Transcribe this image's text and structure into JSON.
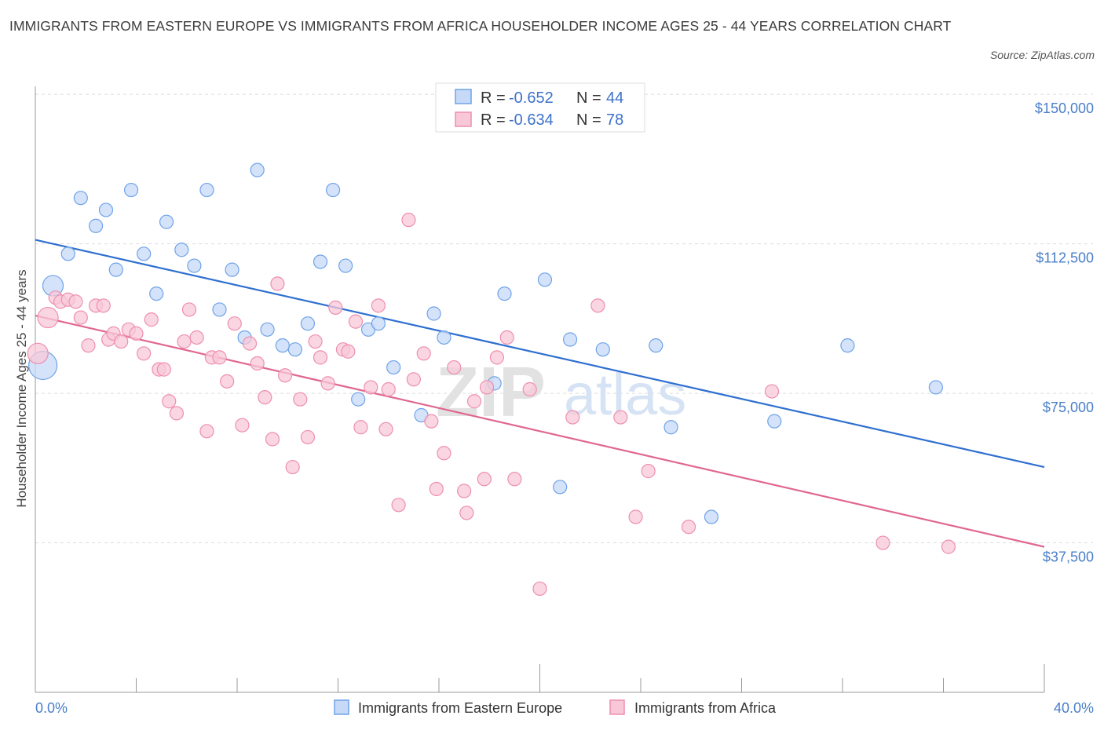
{
  "title": "IMMIGRANTS FROM EASTERN EUROPE VS IMMIGRANTS FROM AFRICA HOUSEHOLDER INCOME AGES 25 - 44 YEARS CORRELATION CHART",
  "source": "Source: ZipAtlas.com",
  "watermark": {
    "zip": "ZIP",
    "atlas": "atlas"
  },
  "colors": {
    "blue": "#6fa3e8",
    "blue_fill": "#c6daf7",
    "blue_line": "#2f6fd0",
    "pink": "#ee8fae",
    "pink_fill": "#f8c8d8",
    "pink_line": "#e0678f",
    "tick_text": "#4a7fc9"
  },
  "legend_stats": [
    {
      "r_label": "R =",
      "r_value": "-0.652",
      "n_label": "N =",
      "n_value": "44"
    },
    {
      "r_label": "R =",
      "r_value": "-0.634",
      "n_label": "N =",
      "n_value": "78"
    }
  ],
  "chart_data": {
    "type": "scatter",
    "ylabel": "Householder Income Ages 25 - 44 years",
    "xlabel": "",
    "xlim": [
      0,
      40
    ],
    "ylim": [
      0,
      152000
    ],
    "x_tick_labels": {
      "left": "0.0%",
      "right": "40.0%"
    },
    "y_ticks": [
      {
        "value": 37500,
        "label": "$37,500"
      },
      {
        "value": 75000,
        "label": "$75,000"
      },
      {
        "value": 112500,
        "label": "$112,500"
      },
      {
        "value": 150000,
        "label": "$150,000"
      }
    ],
    "series": [
      {
        "name": "Immigrants from Eastern Europe",
        "trend": {
          "x": [
            0,
            40
          ],
          "y": [
            113500,
            56500
          ]
        },
        "points": [
          {
            "x": 0.3,
            "y": 82000,
            "big": 2
          },
          {
            "x": 0.7,
            "y": 102000,
            "big": 1
          },
          {
            "x": 1.3,
            "y": 110000
          },
          {
            "x": 1.8,
            "y": 124000
          },
          {
            "x": 2.4,
            "y": 117000
          },
          {
            "x": 2.8,
            "y": 121000
          },
          {
            "x": 3.2,
            "y": 106000
          },
          {
            "x": 3.8,
            "y": 126000
          },
          {
            "x": 4.3,
            "y": 110000
          },
          {
            "x": 4.8,
            "y": 100000
          },
          {
            "x": 5.2,
            "y": 118000
          },
          {
            "x": 5.8,
            "y": 111000
          },
          {
            "x": 6.3,
            "y": 107000
          },
          {
            "x": 6.8,
            "y": 126000
          },
          {
            "x": 7.3,
            "y": 96000
          },
          {
            "x": 7.8,
            "y": 106000
          },
          {
            "x": 8.3,
            "y": 89000
          },
          {
            "x": 8.8,
            "y": 131000
          },
          {
            "x": 9.2,
            "y": 91000
          },
          {
            "x": 9.8,
            "y": 87000
          },
          {
            "x": 10.3,
            "y": 86000
          },
          {
            "x": 10.8,
            "y": 92500
          },
          {
            "x": 11.3,
            "y": 108000
          },
          {
            "x": 11.8,
            "y": 126000
          },
          {
            "x": 12.3,
            "y": 107000
          },
          {
            "x": 12.8,
            "y": 73500
          },
          {
            "x": 13.2,
            "y": 91000
          },
          {
            "x": 13.6,
            "y": 92500
          },
          {
            "x": 14.2,
            "y": 81500
          },
          {
            "x": 15.3,
            "y": 69500
          },
          {
            "x": 15.8,
            "y": 95000
          },
          {
            "x": 16.2,
            "y": 89000
          },
          {
            "x": 18.2,
            "y": 77500
          },
          {
            "x": 18.6,
            "y": 100000
          },
          {
            "x": 20.2,
            "y": 103500
          },
          {
            "x": 20.8,
            "y": 51500
          },
          {
            "x": 21.2,
            "y": 88500
          },
          {
            "x": 22.5,
            "y": 86000
          },
          {
            "x": 24.6,
            "y": 87000
          },
          {
            "x": 25.2,
            "y": 66500
          },
          {
            "x": 26.8,
            "y": 44000
          },
          {
            "x": 29.3,
            "y": 68000
          },
          {
            "x": 32.2,
            "y": 87000
          },
          {
            "x": 35.7,
            "y": 76500
          }
        ]
      },
      {
        "name": "Immigrants from Africa",
        "trend": {
          "x": [
            0,
            40
          ],
          "y": [
            94500,
            36500
          ]
        },
        "points": [
          {
            "x": 0.1,
            "y": 85000,
            "big": 1
          },
          {
            "x": 0.5,
            "y": 94000,
            "big": 1
          },
          {
            "x": 0.8,
            "y": 99000
          },
          {
            "x": 1.0,
            "y": 98000
          },
          {
            "x": 1.3,
            "y": 98500
          },
          {
            "x": 1.6,
            "y": 98000
          },
          {
            "x": 1.8,
            "y": 94000
          },
          {
            "x": 2.1,
            "y": 87000
          },
          {
            "x": 2.4,
            "y": 97000
          },
          {
            "x": 2.7,
            "y": 97000
          },
          {
            "x": 2.9,
            "y": 88500
          },
          {
            "x": 3.1,
            "y": 90000
          },
          {
            "x": 3.4,
            "y": 88000
          },
          {
            "x": 3.7,
            "y": 91000
          },
          {
            "x": 4.0,
            "y": 90000
          },
          {
            "x": 4.3,
            "y": 85000
          },
          {
            "x": 4.6,
            "y": 93500
          },
          {
            "x": 4.9,
            "y": 81000
          },
          {
            "x": 5.1,
            "y": 81000
          },
          {
            "x": 5.3,
            "y": 73000
          },
          {
            "x": 5.6,
            "y": 70000
          },
          {
            "x": 5.9,
            "y": 88000
          },
          {
            "x": 6.1,
            "y": 96000
          },
          {
            "x": 6.4,
            "y": 89000
          },
          {
            "x": 6.8,
            "y": 65500
          },
          {
            "x": 7.0,
            "y": 84000
          },
          {
            "x": 7.3,
            "y": 84000
          },
          {
            "x": 7.6,
            "y": 78000
          },
          {
            "x": 7.9,
            "y": 92500
          },
          {
            "x": 8.2,
            "y": 67000
          },
          {
            "x": 8.5,
            "y": 87500
          },
          {
            "x": 8.8,
            "y": 82500
          },
          {
            "x": 9.1,
            "y": 74000
          },
          {
            "x": 9.4,
            "y": 63500
          },
          {
            "x": 9.6,
            "y": 102500
          },
          {
            "x": 9.9,
            "y": 79500
          },
          {
            "x": 10.2,
            "y": 56500
          },
          {
            "x": 10.5,
            "y": 73500
          },
          {
            "x": 10.8,
            "y": 64000
          },
          {
            "x": 11.1,
            "y": 88000
          },
          {
            "x": 11.3,
            "y": 84000
          },
          {
            "x": 11.6,
            "y": 77500
          },
          {
            "x": 11.9,
            "y": 96500
          },
          {
            "x": 12.2,
            "y": 86000
          },
          {
            "x": 12.4,
            "y": 85500
          },
          {
            "x": 12.7,
            "y": 93000
          },
          {
            "x": 12.9,
            "y": 66500
          },
          {
            "x": 13.3,
            "y": 76500
          },
          {
            "x": 13.6,
            "y": 97000
          },
          {
            "x": 13.9,
            "y": 66000
          },
          {
            "x": 14.0,
            "y": 76000
          },
          {
            "x": 14.4,
            "y": 47000
          },
          {
            "x": 14.8,
            "y": 118500
          },
          {
            "x": 15.0,
            "y": 78500
          },
          {
            "x": 15.4,
            "y": 85000
          },
          {
            "x": 15.7,
            "y": 68000
          },
          {
            "x": 15.9,
            "y": 51000
          },
          {
            "x": 16.2,
            "y": 60000
          },
          {
            "x": 16.6,
            "y": 81500
          },
          {
            "x": 17.0,
            "y": 50500
          },
          {
            "x": 17.1,
            "y": 45000
          },
          {
            "x": 17.4,
            "y": 73000
          },
          {
            "x": 17.8,
            "y": 53500
          },
          {
            "x": 17.9,
            "y": 76500
          },
          {
            "x": 18.3,
            "y": 84000
          },
          {
            "x": 18.7,
            "y": 89000
          },
          {
            "x": 19.0,
            "y": 53500
          },
          {
            "x": 19.6,
            "y": 76000
          },
          {
            "x": 20.0,
            "y": 26000
          },
          {
            "x": 21.3,
            "y": 69000
          },
          {
            "x": 22.3,
            "y": 97000
          },
          {
            "x": 23.2,
            "y": 69000
          },
          {
            "x": 23.8,
            "y": 44000
          },
          {
            "x": 24.3,
            "y": 55500
          },
          {
            "x": 25.9,
            "y": 41500
          },
          {
            "x": 29.2,
            "y": 75500
          },
          {
            "x": 33.6,
            "y": 37500
          },
          {
            "x": 36.2,
            "y": 36500
          }
        ]
      }
    ]
  }
}
